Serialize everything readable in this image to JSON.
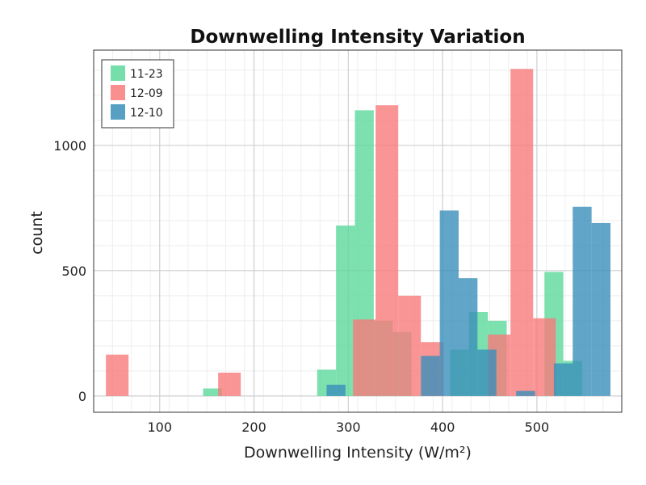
{
  "chart_data": {
    "type": "bar",
    "title": "Downwelling Intensity Variation",
    "xlabel": "Downwelling Intensity (W/m²)",
    "ylabel": "count",
    "xlim": [
      30,
      590
    ],
    "ylim": [
      -65,
      1380
    ],
    "xticks": [
      100,
      200,
      300,
      400,
      500
    ],
    "yticks": [
      0,
      500,
      1000
    ],
    "grid": true,
    "legend_position": "top-left",
    "series": [
      {
        "name": "11-23",
        "color": "#5dd89b",
        "bins": [
          {
            "x0": 146,
            "x1": 166,
            "value": 30
          },
          {
            "x0": 267,
            "x1": 287,
            "value": 105
          },
          {
            "x0": 287,
            "x1": 307,
            "value": 680
          },
          {
            "x0": 307,
            "x1": 327,
            "value": 1140
          },
          {
            "x0": 327,
            "x1": 347,
            "value": 300
          },
          {
            "x0": 347,
            "x1": 367,
            "value": 255
          },
          {
            "x0": 408,
            "x1": 428,
            "value": 185
          },
          {
            "x0": 428,
            "x1": 448,
            "value": 335
          },
          {
            "x0": 448,
            "x1": 468,
            "value": 300
          },
          {
            "x0": 508,
            "x1": 528,
            "value": 495
          },
          {
            "x0": 528,
            "x1": 548,
            "value": 140
          }
        ]
      },
      {
        "name": "12-09",
        "color": "#f87b7b",
        "bins": [
          {
            "x0": 43,
            "x1": 67,
            "value": 165
          },
          {
            "x0": 162,
            "x1": 186,
            "value": 93
          },
          {
            "x0": 305,
            "x1": 329,
            "value": 305
          },
          {
            "x0": 329,
            "x1": 353,
            "value": 1160
          },
          {
            "x0": 353,
            "x1": 377,
            "value": 400
          },
          {
            "x0": 377,
            "x1": 401,
            "value": 215
          },
          {
            "x0": 448,
            "x1": 472,
            "value": 245
          },
          {
            "x0": 472,
            "x1": 496,
            "value": 1305
          },
          {
            "x0": 496,
            "x1": 520,
            "value": 310
          }
        ]
      },
      {
        "name": "12-10",
        "color": "#3a8fba",
        "bins": [
          {
            "x0": 277,
            "x1": 297,
            "value": 45
          },
          {
            "x0": 377,
            "x1": 397,
            "value": 160
          },
          {
            "x0": 397,
            "x1": 417,
            "value": 740
          },
          {
            "x0": 417,
            "x1": 437,
            "value": 470
          },
          {
            "x0": 437,
            "x1": 457,
            "value": 185
          },
          {
            "x0": 478,
            "x1": 498,
            "value": 20
          },
          {
            "x0": 518,
            "x1": 538,
            "value": 130
          },
          {
            "x0": 538,
            "x1": 558,
            "value": 755
          },
          {
            "x0": 558,
            "x1": 578,
            "value": 690
          }
        ]
      }
    ]
  }
}
